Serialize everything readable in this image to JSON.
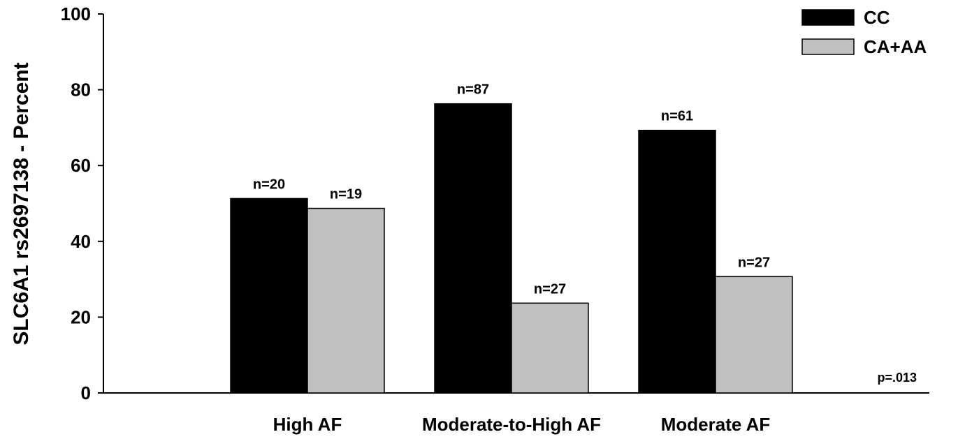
{
  "chart_data": {
    "type": "bar",
    "categories": [
      "High AF",
      "Moderate-to-High AF",
      "Moderate AF"
    ],
    "series": [
      {
        "name": "CC",
        "values": [
          51.3,
          76.3,
          69.3
        ],
        "labels": [
          "n=20",
          "n=87",
          "n=61"
        ],
        "color": "#000000"
      },
      {
        "name": "CA+AA",
        "values": [
          48.7,
          23.7,
          30.7
        ],
        "labels": [
          "n=19",
          "n=27",
          "n=27"
        ],
        "color": "#c0c0c0"
      }
    ],
    "ylabel": "SLC6A1 rs2697138 - Percent",
    "xlabel": "",
    "ylim": [
      0,
      100
    ],
    "yticks": [
      0,
      20,
      40,
      60,
      80,
      100
    ],
    "legend_position": "top-right",
    "annotation": "p=.013"
  }
}
